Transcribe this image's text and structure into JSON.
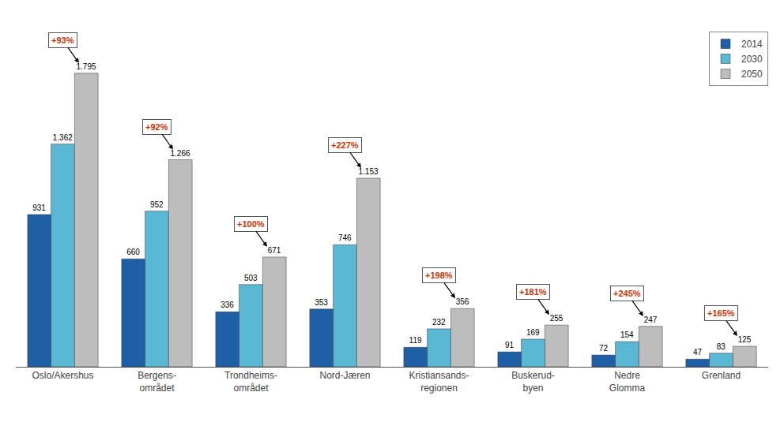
{
  "chart_data": {
    "type": "bar",
    "categories": [
      "Oslo/Akershus",
      "Bergens-\nområdet",
      "Trondheims-\nområdet",
      "Nord-Jæren",
      "Kristiansands-\nregionen",
      "Buskerud-\nbyen",
      "Nedre\nGlomma",
      "Grenland"
    ],
    "series": [
      {
        "name": "2014",
        "color": "#1F5FA6",
        "values": [
          931,
          660,
          336,
          353,
          119,
          91,
          72,
          47
        ],
        "value_labels": [
          "931",
          "660",
          "336",
          "353",
          "119",
          "91",
          "72",
          "47"
        ]
      },
      {
        "name": "2030",
        "color": "#5BB8D4",
        "values": [
          1362,
          952,
          503,
          746,
          232,
          169,
          154,
          83
        ],
        "value_labels": [
          "1.362",
          "952",
          "503",
          "746",
          "232",
          "169",
          "154",
          "83"
        ]
      },
      {
        "name": "2050",
        "color": "#BDBDBD",
        "values": [
          1795,
          1266,
          671,
          1153,
          356,
          255,
          247,
          125
        ],
        "value_labels": [
          "1.795",
          "1.266",
          "671",
          "1.153",
          "356",
          "255",
          "247",
          "125"
        ]
      }
    ],
    "annotations": [
      {
        "text": "+93%",
        "color": "#CC3300"
      },
      {
        "text": "+92%",
        "color": "#CC3300"
      },
      {
        "text": "+100%",
        "color": "#CC3300"
      },
      {
        "text": "+227%",
        "color": "#CC3300"
      },
      {
        "text": "+198%",
        "color": "#CC3300"
      },
      {
        "text": "+181%",
        "color": "#CC3300"
      },
      {
        "text": "+245%",
        "color": "#CC3300"
      },
      {
        "text": "+165%",
        "color": "#CC3300"
      }
    ],
    "ylim": [
      0,
      2050
    ],
    "data_labels": true,
    "tick_labels": "x",
    "grid": false,
    "legend": "upper right"
  }
}
